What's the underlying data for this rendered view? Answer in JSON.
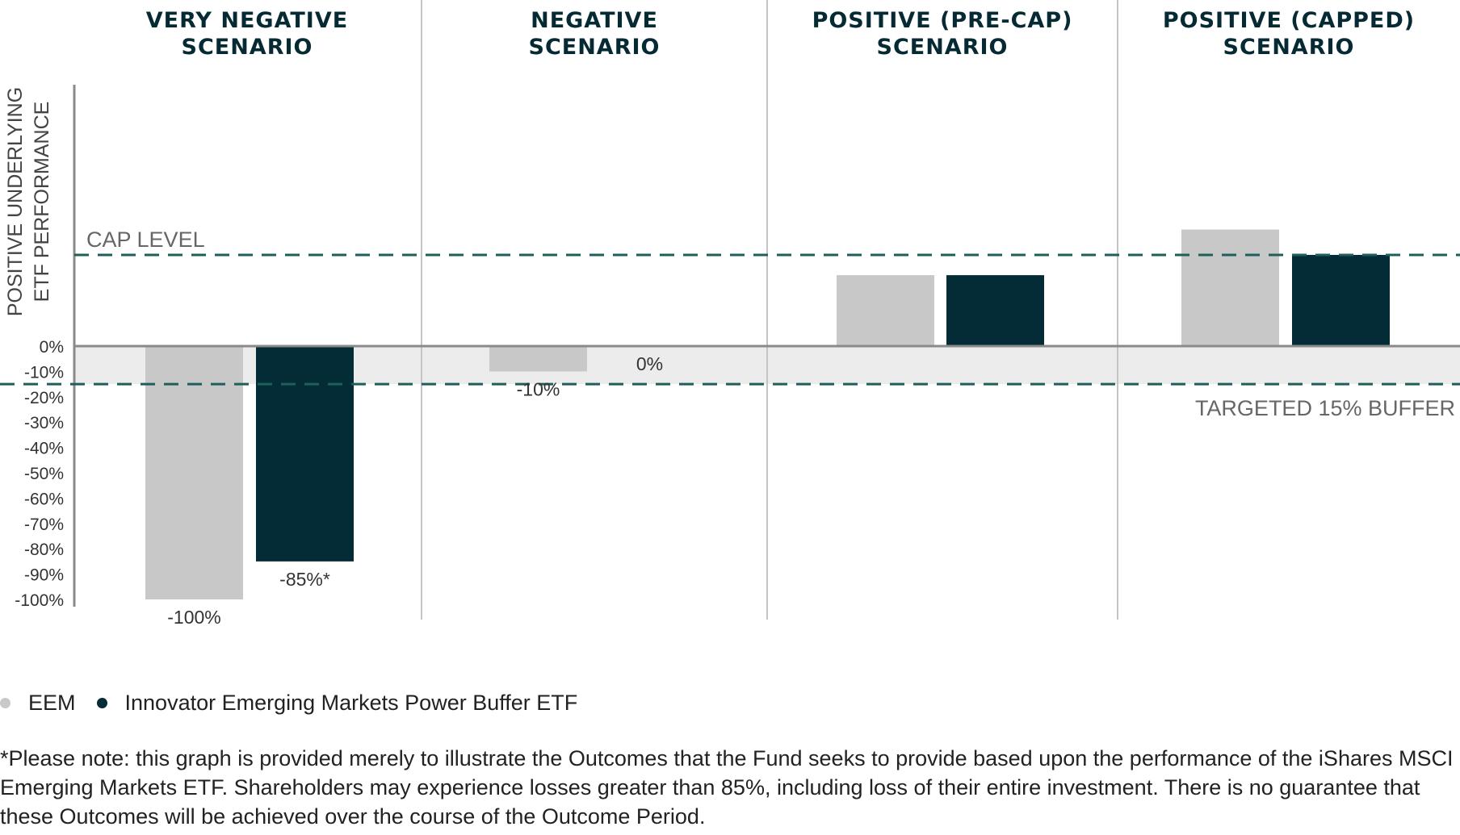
{
  "chart_data": {
    "type": "bar",
    "ylabel_lines": [
      "POSITIVE UNDERLYING",
      "ETF PERFORMANCE"
    ],
    "yticks": [
      "0%",
      "-10%",
      "-20%",
      "-30%",
      "-40%",
      "-50%",
      "-60%",
      "-70%",
      "-80%",
      "-90%",
      "-100%"
    ],
    "ytick_values": [
      0,
      -10,
      -20,
      -30,
      -40,
      -50,
      -60,
      -70,
      -80,
      -90,
      -100
    ],
    "ylim": [
      -100,
      45
    ],
    "cap_level": 36,
    "buffer_level": -15,
    "cap_label": "CAP LEVEL",
    "buffer_label": "TARGETED 15% BUFFER",
    "categories": [
      {
        "title_lines": [
          "VERY NEGATIVE",
          "SCENARIO"
        ]
      },
      {
        "title_lines": [
          "NEGATIVE",
          "SCENARIO"
        ]
      },
      {
        "title_lines": [
          "POSITIVE (PRE-CAP)",
          "SCENARIO"
        ]
      },
      {
        "title_lines": [
          "POSITIVE (CAPPED)",
          "SCENARIO"
        ]
      }
    ],
    "series": [
      {
        "name": "EEM",
        "color": "#c8c8c9",
        "values": [
          -100,
          -10,
          28,
          46
        ],
        "value_labels": [
          "-100%",
          "-10%",
          "",
          ""
        ]
      },
      {
        "name": "Innovator Emerging Markets Power Buffer ETF",
        "color": "#032c36",
        "values": [
          -85,
          0,
          28,
          36
        ],
        "value_labels": [
          "-85%*",
          "0%",
          "",
          ""
        ]
      }
    ],
    "colors": {
      "eem": "#c8c8c9",
      "fund": "#032c36",
      "dashed": "#1f5f5b",
      "axis": "#8a8a8a",
      "buffer_band": "#ececec"
    }
  },
  "legend": [
    {
      "label": "EEM",
      "color": "#c8c8c9"
    },
    {
      "label": "Innovator Emerging Markets Power Buffer ETF",
      "color": "#032c36"
    }
  ],
  "footnote": "*Please note: this graph is provided merely to illustrate the Outcomes that the Fund seeks to provide based upon the performance of the iShares MSCI Emerging Markets ETF. Shareholders may experience losses greater than 85%, including loss of their entire investment. There is no guarantee that these Outcomes will be achieved over the course of the Outcome Period."
}
